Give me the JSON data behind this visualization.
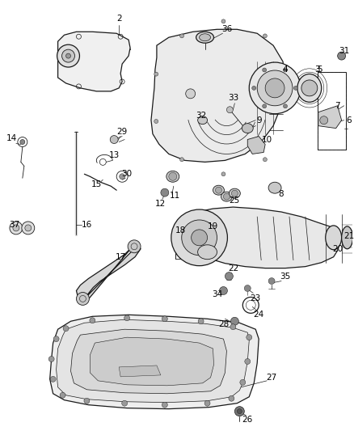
{
  "background_color": "#ffffff",
  "line_color": "#1a1a1a",
  "label_color": "#000000",
  "label_fontsize": 7.5,
  "fig_width": 4.38,
  "fig_height": 5.33,
  "dpi": 100
}
